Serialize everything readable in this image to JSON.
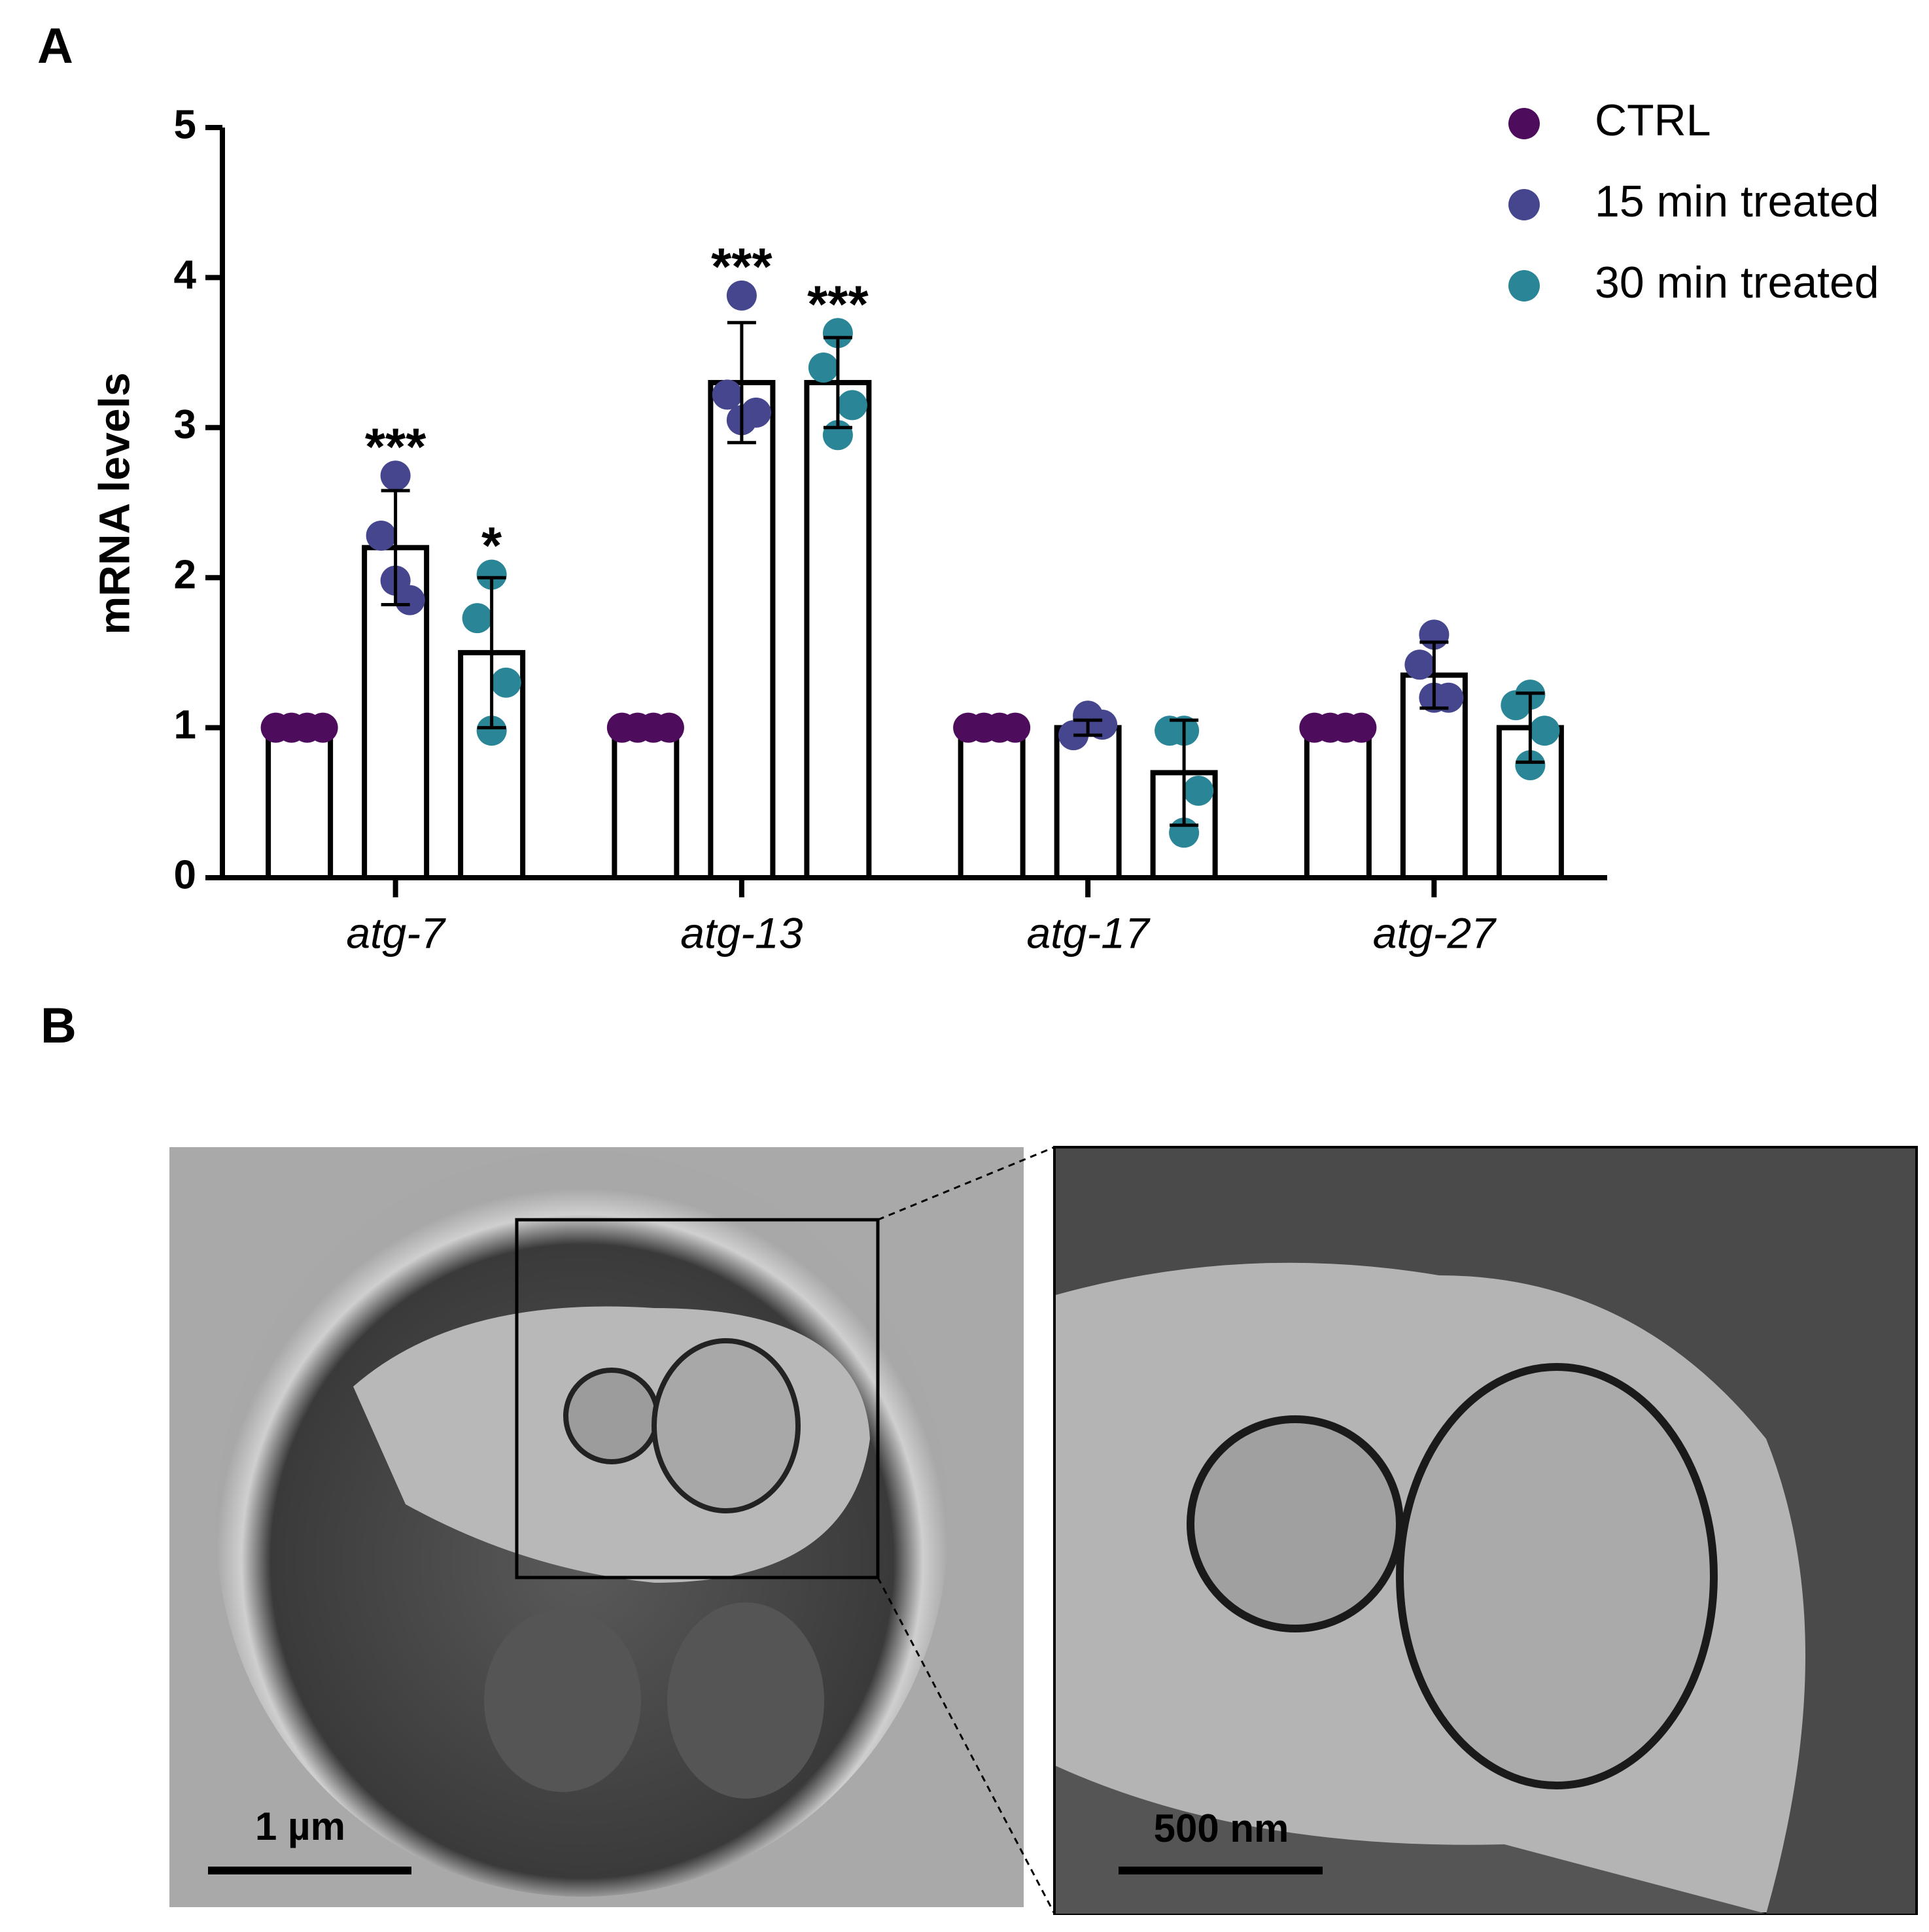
{
  "panels": {
    "a_label": "A",
    "b_label": "B"
  },
  "scale_bars": [
    "1 µm",
    "500 nm"
  ],
  "chart_data": {
    "type": "bar",
    "y_label": "mRNA levels",
    "categories": [
      "atg-7",
      "atg-13",
      "atg-17",
      "atg-27"
    ],
    "ylim": [
      0,
      5
    ],
    "yticks": [
      0,
      1,
      2,
      3,
      4,
      5
    ],
    "legend": "top-right",
    "series": [
      {
        "name": "CTRL",
        "color": "#4d0c5c",
        "values": [
          1,
          1,
          1,
          1
        ],
        "errors": [
          0,
          0,
          0,
          0
        ],
        "points": [
          [
            1,
            1,
            1,
            1
          ],
          [
            1,
            1,
            1,
            1
          ],
          [
            1,
            1,
            1,
            1
          ],
          [
            1,
            1,
            1,
            1
          ]
        ],
        "significance": [
          null,
          null,
          null,
          null
        ]
      },
      {
        "name": "15 min treated",
        "color": "#46468f",
        "values": [
          2.2,
          3.3,
          1.0,
          1.35
        ],
        "errors": [
          0.38,
          0.4,
          0.05,
          0.22
        ],
        "points": [
          [
            2.68,
            2.28,
            1.85,
            1.98
          ],
          [
            3.88,
            3.22,
            3.1,
            3.05
          ],
          [
            1.08,
            0.95,
            1.02,
            1.05
          ],
          [
            1.62,
            1.42,
            1.2,
            1.2
          ]
        ],
        "significance": [
          "***",
          "***",
          null,
          null
        ]
      },
      {
        "name": "30 min treated",
        "color": "#2a8696",
        "values": [
          1.5,
          3.3,
          0.7,
          1.0
        ],
        "errors": [
          0.5,
          0.3,
          0.35,
          0.23
        ],
        "points": [
          [
            2.02,
            1.73,
            1.3,
            0.98
          ],
          [
            3.63,
            3.4,
            3.15,
            2.95
          ],
          [
            0.98,
            0.98,
            0.58,
            0.3
          ],
          [
            1.22,
            1.15,
            0.98,
            0.75
          ]
        ],
        "significance": [
          "*",
          "***",
          null,
          null
        ]
      }
    ]
  }
}
